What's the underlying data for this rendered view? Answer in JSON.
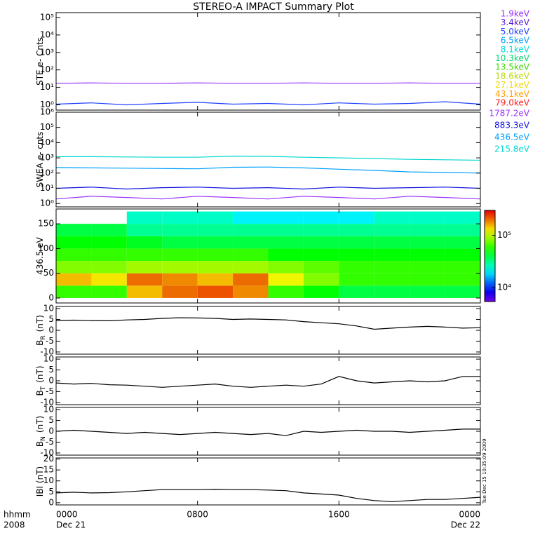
{
  "title": "STEREO-A IMPACT Summary Plot",
  "timestamp": "Tue Dec 15 10:35:09 2009",
  "x_axis": {
    "label_top": "hhmm",
    "label_bottom": "2008",
    "xlim": [
      0,
      24
    ],
    "xticks": [
      {
        "value": 0,
        "label": "0000"
      },
      {
        "value": 8,
        "label": "0800"
      },
      {
        "value": 16,
        "label": "1600"
      },
      {
        "value": 24,
        "label": "0000"
      }
    ],
    "dates": [
      {
        "value": 0,
        "label": "Dec 21"
      },
      {
        "value": 24,
        "label": "Dec 22"
      }
    ]
  },
  "chart_data": [
    {
      "type": "line",
      "ylabel": "STE e- Cnts",
      "log": true,
      "legend": true,
      "ylim": [
        0.5,
        190000
      ],
      "yticks": [
        {
          "value": 1,
          "label": "10⁰"
        },
        {
          "value": 10,
          "label": "10¹"
        },
        {
          "value": 100,
          "label": "10²"
        },
        {
          "value": 1000,
          "label": "10³"
        },
        {
          "value": 10000,
          "label": "10⁴"
        },
        {
          "value": 100000,
          "label": "10⁵"
        }
      ],
      "x": [
        0,
        2,
        4,
        6,
        8,
        10,
        12,
        14,
        16,
        18,
        20,
        22,
        24
      ],
      "series": [
        {
          "name": "1.9keV",
          "color": "#9b30ff",
          "values": [
            17,
            18,
            17,
            17,
            18,
            17,
            17,
            18,
            17,
            17,
            18,
            17,
            17
          ]
        },
        {
          "name": "3.4keV",
          "color": "#5a1ad0",
          "values": [
            null,
            null,
            null,
            null,
            null,
            null,
            null,
            null,
            null,
            null,
            null,
            null,
            null
          ]
        },
        {
          "name": "5.0keV",
          "color": "#2040ff",
          "values": [
            1.1,
            1.3,
            1.0,
            1.2,
            1.4,
            1.1,
            1.2,
            1.0,
            1.3,
            1.1,
            1.2,
            1.5,
            1.1
          ]
        },
        {
          "name": "6.5keV",
          "color": "#00a0ff",
          "values": [
            null,
            null,
            null,
            null,
            null,
            null,
            null,
            null,
            null,
            null,
            null,
            null,
            null
          ]
        },
        {
          "name": "8.1keV",
          "color": "#00d8d8",
          "values": [
            null,
            null,
            null,
            null,
            null,
            null,
            null,
            null,
            null,
            null,
            null,
            null,
            null
          ]
        },
        {
          "name": "10.3keV",
          "color": "#00d870",
          "values": [
            null,
            null,
            null,
            null,
            null,
            null,
            null,
            null,
            null,
            null,
            null,
            null,
            null
          ]
        },
        {
          "name": "13.5keV",
          "color": "#40d800",
          "values": [
            null,
            null,
            null,
            null,
            null,
            null,
            null,
            null,
            null,
            null,
            null,
            null,
            null
          ]
        },
        {
          "name": "18.6keV",
          "color": "#b8d800",
          "values": [
            null,
            null,
            null,
            null,
            null,
            null,
            null,
            null,
            null,
            null,
            null,
            null,
            null
          ]
        },
        {
          "name": "27.1keV",
          "color": "#f0d800",
          "values": [
            null,
            null,
            null,
            null,
            null,
            null,
            null,
            null,
            null,
            null,
            null,
            null,
            null
          ]
        },
        {
          "name": "43.1keV",
          "color": "#ffa000",
          "values": [
            null,
            null,
            null,
            null,
            null,
            null,
            null,
            null,
            null,
            null,
            null,
            null,
            null
          ]
        },
        {
          "name": "79.0keV",
          "color": "#ff2020",
          "values": [
            null,
            null,
            null,
            null,
            null,
            null,
            null,
            null,
            null,
            null,
            null,
            null,
            null
          ]
        }
      ]
    },
    {
      "type": "line",
      "ylabel": "SWEA e- cnts",
      "log": true,
      "legend": true,
      "ylim": [
        0.6,
        1000000
      ],
      "yticks": [
        {
          "value": 1,
          "label": "10⁰"
        },
        {
          "value": 10,
          "label": "10¹"
        },
        {
          "value": 100,
          "label": "10²"
        },
        {
          "value": 1000,
          "label": "10³"
        },
        {
          "value": 10000,
          "label": "10⁴"
        },
        {
          "value": 100000,
          "label": "10⁵"
        },
        {
          "value": 1000000,
          "label": "10⁶"
        }
      ],
      "x": [
        0,
        2,
        4,
        6,
        8,
        10,
        12,
        14,
        16,
        18,
        20,
        22,
        24
      ],
      "series": [
        {
          "name": "1787.2eV",
          "color": "#9b30ff",
          "values": [
            2,
            3,
            2.5,
            2,
            3,
            2.5,
            2,
            3,
            2.5,
            2,
            3,
            2.5,
            2
          ]
        },
        {
          "name": "883.3eV",
          "color": "#1010e0",
          "values": [
            10,
            12,
            9,
            11,
            12,
            10,
            11,
            9,
            12,
            10,
            11,
            12,
            10
          ]
        },
        {
          "name": "436.5eV",
          "color": "#00a0ff",
          "values": [
            230,
            220,
            210,
            200,
            190,
            240,
            250,
            220,
            180,
            150,
            120,
            110,
            100
          ]
        },
        {
          "name": "215.8eV",
          "color": "#00d8d0",
          "values": [
            1200,
            1200,
            1150,
            1100,
            1100,
            1300,
            1250,
            1100,
            1000,
            900,
            800,
            750,
            700
          ]
        }
      ]
    },
    {
      "type": "heatmap",
      "ylabel": "436.5 eV",
      "ylim": [
        -10,
        180
      ],
      "yticks": [
        0,
        50,
        100,
        150
      ],
      "xbins": [
        0,
        2,
        4,
        6,
        8,
        10,
        12,
        14,
        16,
        18,
        20,
        22,
        24
      ],
      "ybins": [
        0,
        25,
        50,
        75,
        100,
        125,
        150,
        175
      ],
      "values": [
        [
          60000,
          60000,
          150000,
          200000,
          220000,
          180000,
          60000,
          50000,
          40000,
          40000,
          40000,
          40000
        ],
        [
          150000,
          130000,
          200000,
          180000,
          150000,
          200000,
          120000,
          80000,
          60000,
          60000,
          60000,
          60000
        ],
        [
          80000,
          80000,
          90000,
          90000,
          90000,
          90000,
          80000,
          70000,
          60000,
          60000,
          60000,
          60000
        ],
        [
          60000,
          60000,
          60000,
          60000,
          60000,
          60000,
          50000,
          50000,
          50000,
          50000,
          50000,
          50000
        ],
        [
          50000,
          50000,
          45000,
          40000,
          40000,
          40000,
          40000,
          40000,
          40000,
          40000,
          40000,
          40000
        ],
        [
          40000,
          40000,
          30000,
          30000,
          30000,
          30000,
          30000,
          30000,
          30000,
          30000,
          30000,
          30000
        ],
        [
          null,
          null,
          25000,
          25000,
          25000,
          20000,
          20000,
          20000,
          20000,
          25000,
          25000,
          25000
        ]
      ],
      "clim": [
        5400,
        300000
      ],
      "cticks": [
        {
          "value": 10000,
          "label": "10⁴"
        },
        {
          "value": 100000,
          "label": "10⁵"
        }
      ]
    },
    {
      "type": "line",
      "ylabel": "B",
      "ylabel_sub": "R",
      "ylabel_unit": "(nT)",
      "ylim": [
        -11,
        11
      ],
      "yticks": [
        -10,
        -5,
        0,
        5,
        10
      ],
      "x": [
        0,
        1,
        2,
        3,
        4,
        5,
        6,
        7,
        8,
        9,
        10,
        11,
        12,
        13,
        14,
        15,
        16,
        17,
        18,
        19,
        20,
        21,
        22,
        23,
        24
      ],
      "series": [
        {
          "color": "#000000",
          "values": [
            4.5,
            4.7,
            4.5,
            4.4,
            4.8,
            5,
            5.5,
            5.8,
            5.7,
            5.5,
            5,
            5.2,
            5,
            4.8,
            4,
            3.5,
            3,
            2,
            0.5,
            1,
            1.5,
            1.8,
            1.5,
            1,
            1.2
          ]
        }
      ]
    },
    {
      "type": "line",
      "ylabel": "B",
      "ylabel_sub": "T",
      "ylabel_unit": "(nT)",
      "ylim": [
        -11,
        11
      ],
      "yticks": [
        -10,
        -5,
        0,
        5,
        10
      ],
      "x": [
        0,
        1,
        2,
        3,
        4,
        5,
        6,
        7,
        8,
        9,
        10,
        11,
        12,
        13,
        14,
        15,
        16,
        17,
        18,
        19,
        20,
        21,
        22,
        23,
        24
      ],
      "series": [
        {
          "color": "#000000",
          "values": [
            -1,
            -1.5,
            -1.2,
            -1.8,
            -2,
            -2.5,
            -3,
            -2.5,
            -2,
            -1.5,
            -2.5,
            -3,
            -2.5,
            -2,
            -2.5,
            -1.5,
            2,
            0,
            -1,
            -0.5,
            0,
            -0.5,
            0,
            2,
            2
          ]
        }
      ]
    },
    {
      "type": "line",
      "ylabel": "B",
      "ylabel_sub": "N",
      "ylabel_unit": "(nT)",
      "ylim": [
        -11,
        11
      ],
      "yticks": [
        -10,
        -5,
        0,
        5,
        10
      ],
      "x": [
        0,
        1,
        2,
        3,
        4,
        5,
        6,
        7,
        8,
        9,
        10,
        11,
        12,
        13,
        14,
        15,
        16,
        17,
        18,
        19,
        20,
        21,
        22,
        23,
        24
      ],
      "series": [
        {
          "color": "#000000",
          "values": [
            0,
            0.5,
            0,
            -0.5,
            -1,
            -0.5,
            -1,
            -1.5,
            -1,
            -0.5,
            -1,
            -1.5,
            -1,
            -2,
            0,
            -0.5,
            0,
            0.5,
            0,
            0,
            -0.5,
            0,
            0.5,
            1,
            1
          ]
        }
      ]
    },
    {
      "type": "line",
      "ylabel": "IBI (nT)",
      "ylim": [
        -1,
        20.5
      ],
      "yticks": [
        0,
        5,
        10,
        15,
        20
      ],
      "x": [
        0,
        1,
        2,
        3,
        4,
        5,
        6,
        7,
        8,
        9,
        10,
        11,
        12,
        13,
        14,
        15,
        16,
        17,
        18,
        19,
        20,
        21,
        22,
        23,
        24
      ],
      "series": [
        {
          "color": "#000000",
          "values": [
            4.5,
            4.8,
            4.5,
            4.6,
            5,
            5.5,
            6,
            6,
            6,
            6.2,
            6,
            6,
            5.8,
            5.5,
            4.5,
            4,
            3.5,
            2,
            1,
            0.5,
            1,
            1.5,
            1.5,
            2,
            2.5
          ]
        }
      ]
    }
  ]
}
